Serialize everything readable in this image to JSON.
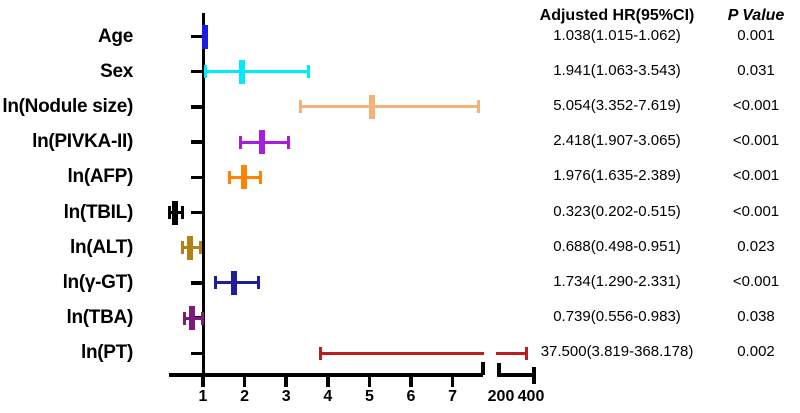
{
  "header": {
    "hr_col": "Adjusted HR(95%CI)",
    "p_col": "P Value"
  },
  "chart_data": {
    "type": "scatter",
    "subtype": "forest-plot",
    "title": "",
    "xlabel": "",
    "ylabel": "",
    "legend": "none",
    "x_axis": {
      "main_ticks": [
        1,
        2,
        3,
        4,
        5,
        6,
        7
      ],
      "main_range": [
        0.2,
        7.73
      ],
      "has_break": true,
      "break_ticks": [
        200,
        400
      ],
      "break_range": [
        200,
        420
      ]
    },
    "reference_line_x": 1,
    "rows": [
      {
        "label": "Age",
        "hr": 1.038,
        "ci_low": 1.015,
        "ci_high": 1.062,
        "hr_text": "1.038(1.015-1.062)",
        "p_value": "0.001",
        "color": "#1C1CE8"
      },
      {
        "label": "Sex",
        "hr": 1.941,
        "ci_low": 1.063,
        "ci_high": 3.543,
        "hr_text": "1.941(1.063-3.543)",
        "p_value": "0.031",
        "color": "#00EBFF"
      },
      {
        "label": "ln(Nodule size)",
        "hr": 5.054,
        "ci_low": 3.352,
        "ci_high": 7.619,
        "hr_text": "5.054(3.352-7.619)",
        "p_value": "<0.001",
        "color": "#F4B179"
      },
      {
        "label": "ln(PIVKA-II)",
        "hr": 2.418,
        "ci_low": 1.907,
        "ci_high": 3.065,
        "hr_text": "2.418(1.907-3.065)",
        "p_value": "<0.001",
        "color": "#A81CE0"
      },
      {
        "label": "ln(AFP)",
        "hr": 1.976,
        "ci_low": 1.635,
        "ci_high": 2.389,
        "hr_text": "1.976(1.635-2.389)",
        "p_value": "<0.001",
        "color": "#FF8405"
      },
      {
        "label": "ln(TBIL)",
        "hr": 0.323,
        "ci_low": 0.202,
        "ci_high": 0.515,
        "hr_text": "0.323(0.202-0.515)",
        "p_value": "<0.001",
        "color": "#000000"
      },
      {
        "label": "ln(ALT)",
        "hr": 0.688,
        "ci_low": 0.498,
        "ci_high": 0.951,
        "hr_text": "0.688(0.498-0.951)",
        "p_value": "0.023",
        "color": "#B28117"
      },
      {
        "label": "ln(γ-GT)",
        "hr": 1.734,
        "ci_low": 1.29,
        "ci_high": 2.331,
        "hr_text": "1.734(1.290-2.331)",
        "p_value": "<0.001",
        "color": "#1E1E99"
      },
      {
        "label": "ln(TBA)",
        "hr": 0.739,
        "ci_low": 0.556,
        "ci_high": 0.983,
        "hr_text": "0.739(0.556-0.983)",
        "p_value": "0.038",
        "color": "#7D1B7D"
      },
      {
        "label": "ln(PT)",
        "hr": 37.5,
        "ci_low": 3.819,
        "ci_high": 368.178,
        "hr_text": "37.500(3.819-368.178)",
        "p_value": "0.002",
        "color": "#B91D1D"
      }
    ]
  }
}
